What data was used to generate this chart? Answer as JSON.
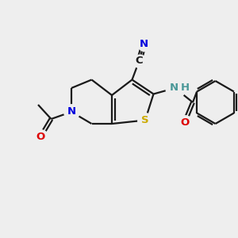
{
  "bg_color": "#eeeeee",
  "bond_color": "#1a1a1a",
  "S_color": "#ccaa00",
  "N_color": "#0000dd",
  "NH_color": "#4a9898",
  "O_color": "#dd0000",
  "CN_N_color": "#0000dd",
  "lw": 1.6,
  "dbo": 0.13,
  "fs": 9.5,
  "figsize": [
    3.0,
    3.0
  ],
  "dpi": 100,
  "xlim": [
    0,
    10
  ],
  "ylim": [
    0,
    10
  ]
}
